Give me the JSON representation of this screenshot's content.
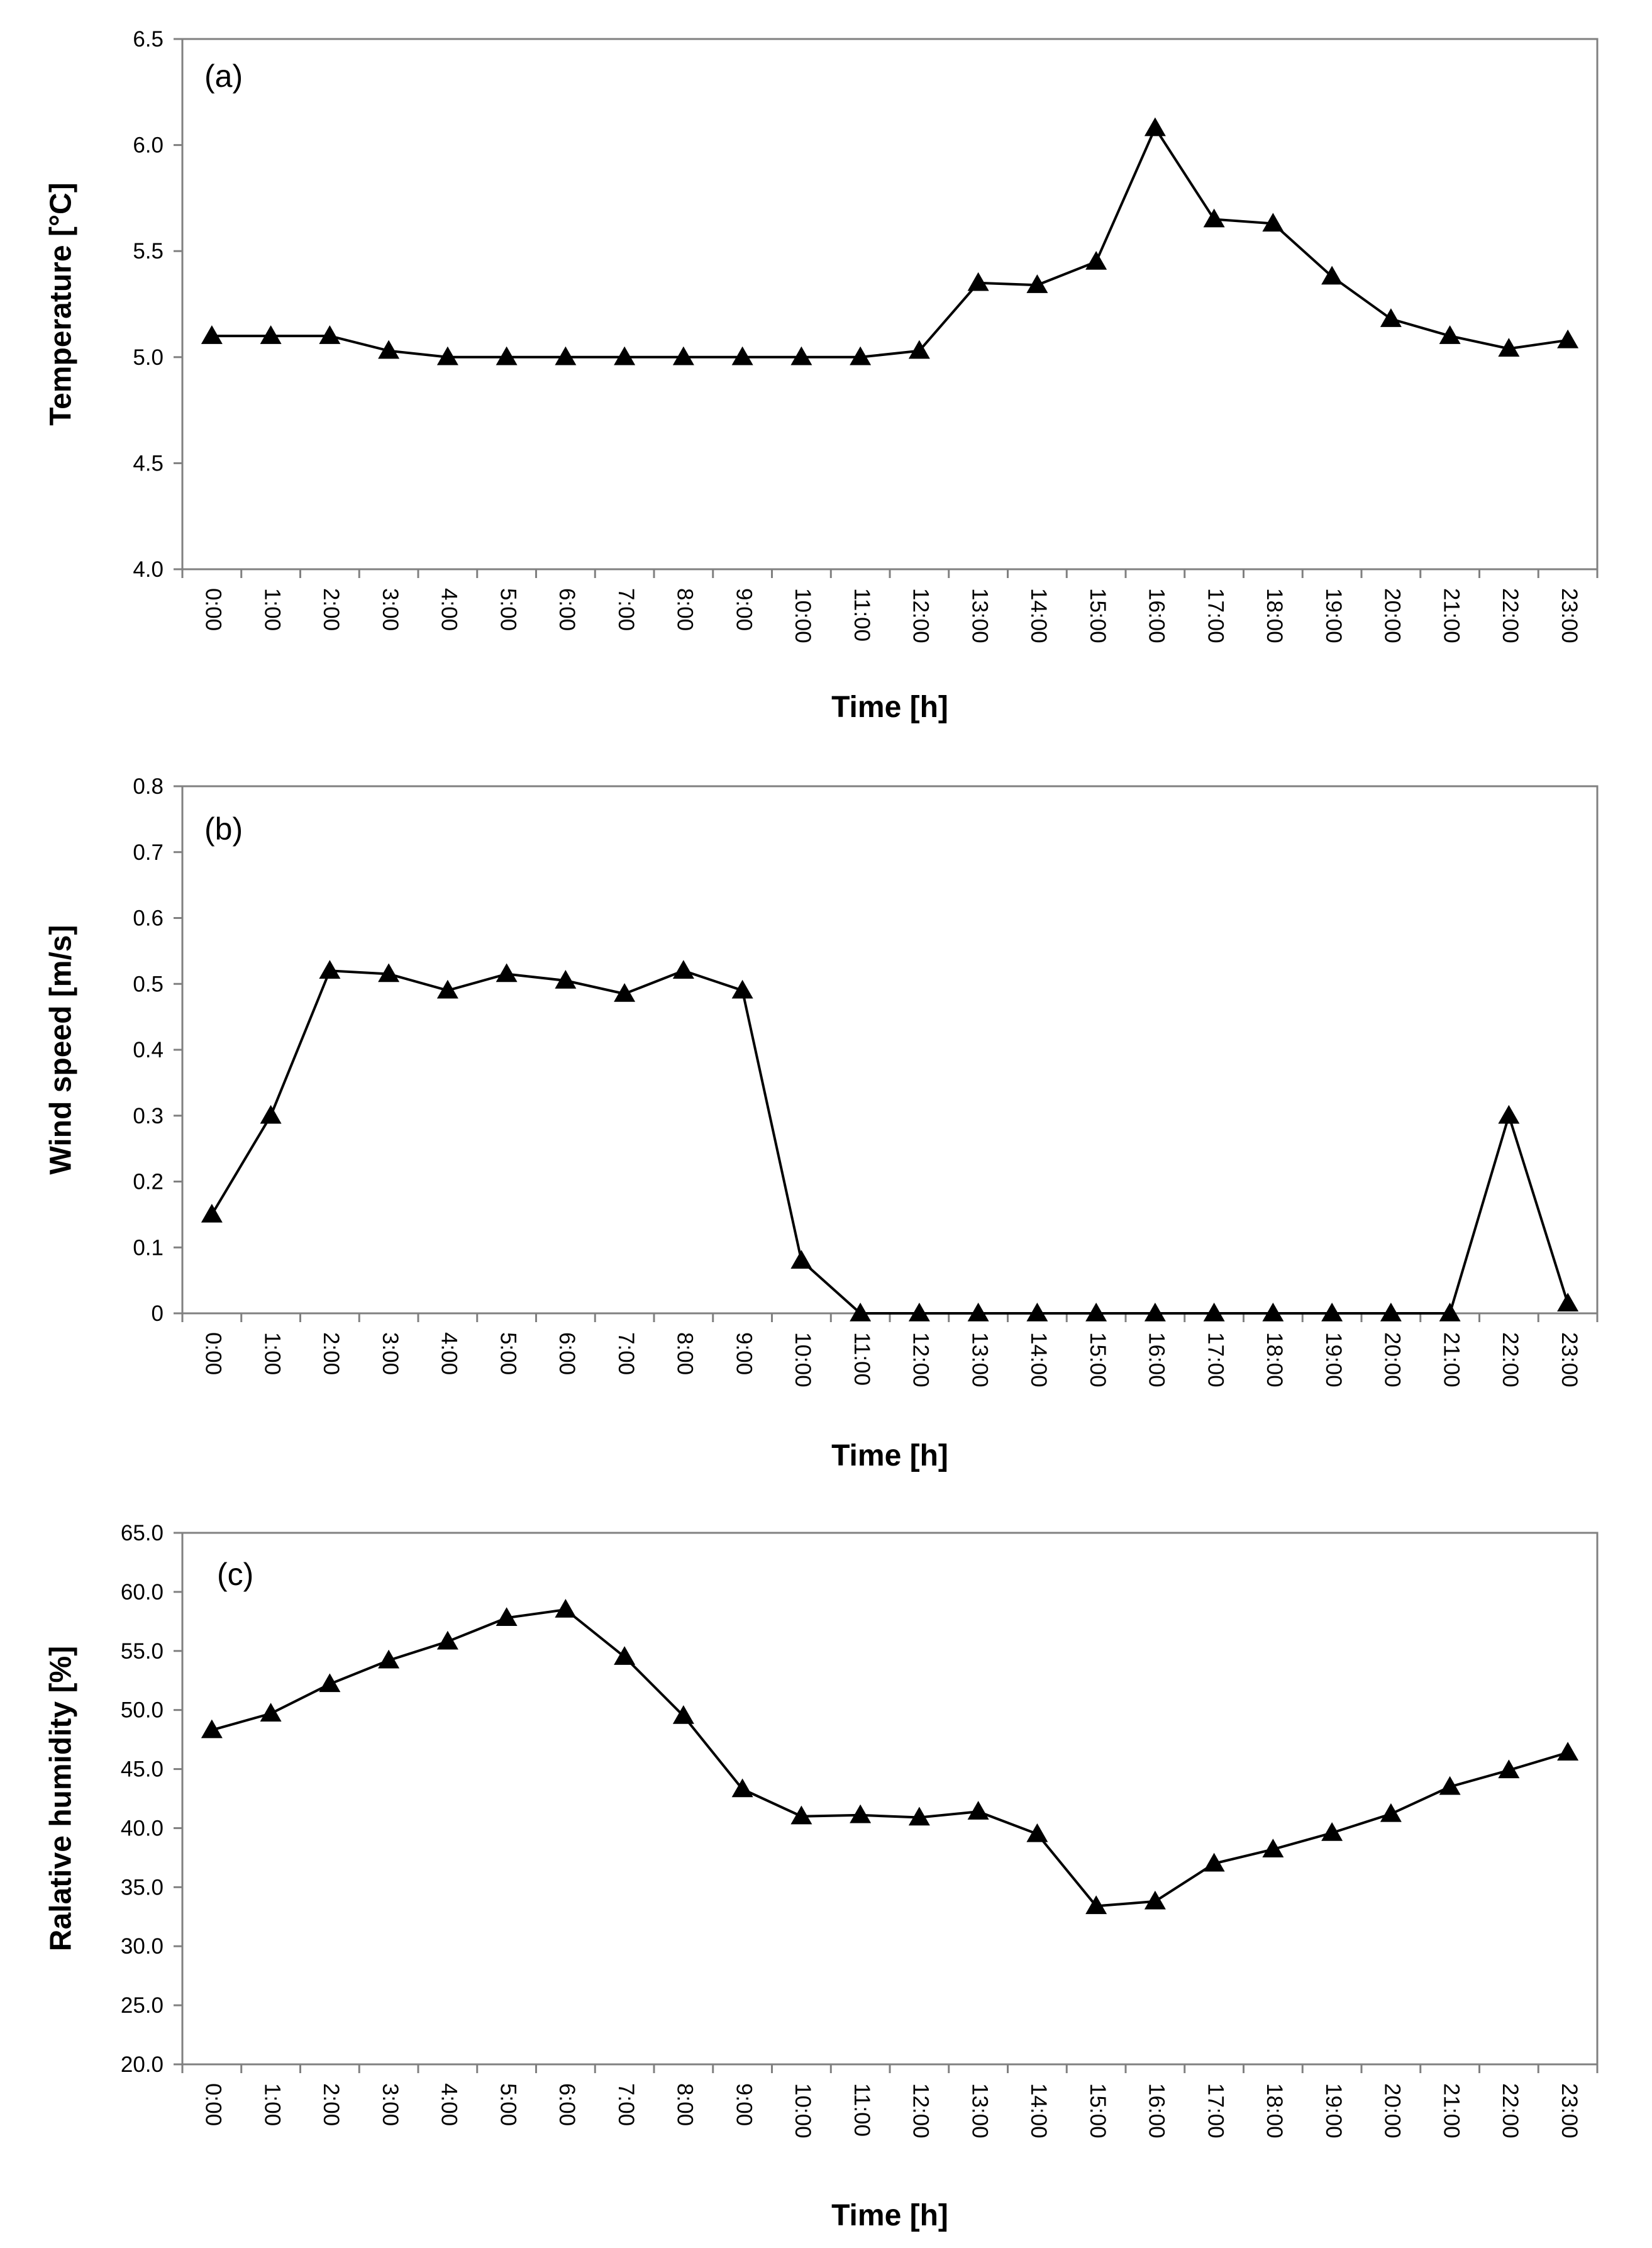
{
  "chart_data": [
    {
      "type": "line",
      "panel_label": "(a)",
      "xlabel": "Time [h]",
      "ylabel": "Temperature [°C]",
      "categories": [
        "0:00",
        "1:00",
        "2:00",
        "3:00",
        "4:00",
        "5:00",
        "6:00",
        "7:00",
        "8:00",
        "9:00",
        "10:00",
        "11:00",
        "12:00",
        "13:00",
        "14:00",
        "15:00",
        "16:00",
        "17:00",
        "18:00",
        "19:00",
        "20:00",
        "21:00",
        "22:00",
        "23:00"
      ],
      "yticks": [
        "4.0",
        "4.5",
        "5.0",
        "5.5",
        "6.0",
        "6.5"
      ],
      "ylim": [
        4.0,
        6.5
      ],
      "marker": "triangle",
      "color": "#000000",
      "values": [
        5.1,
        5.1,
        5.1,
        5.03,
        5.0,
        5.0,
        5.0,
        5.0,
        5.0,
        5.0,
        5.0,
        5.0,
        5.03,
        5.35,
        5.34,
        5.45,
        6.08,
        5.65,
        5.63,
        5.38,
        5.18,
        5.1,
        5.04,
        5.08
      ]
    },
    {
      "type": "line",
      "panel_label": "(b)",
      "xlabel": "Time [h]",
      "ylabel": "Wind speed [m/s]",
      "categories": [
        "0:00",
        "1:00",
        "2:00",
        "3:00",
        "4:00",
        "5:00",
        "6:00",
        "7:00",
        "8:00",
        "9:00",
        "10:00",
        "11:00",
        "12:00",
        "13:00",
        "14:00",
        "15:00",
        "16:00",
        "17:00",
        "18:00",
        "19:00",
        "20:00",
        "21:00",
        "22:00",
        "23:00"
      ],
      "yticks": [
        "0",
        "0.1",
        "0.2",
        "0.3",
        "0.4",
        "0.5",
        "0.6",
        "0.7",
        "0.8"
      ],
      "ylim": [
        0,
        0.8
      ],
      "marker": "triangle",
      "color": "#000000",
      "values": [
        0.15,
        0.3,
        0.52,
        0.515,
        0.49,
        0.515,
        0.505,
        0.485,
        0.52,
        0.49,
        0.08,
        0.0,
        0.0,
        0.0,
        0.0,
        0.0,
        0.0,
        0.0,
        0.0,
        0.0,
        0.0,
        0.0,
        0.3,
        0.015
      ]
    },
    {
      "type": "line",
      "panel_label": "(c)",
      "xlabel": "Time [h]",
      "ylabel": "Ralative humidity [%]",
      "categories": [
        "0:00",
        "1:00",
        "2:00",
        "3:00",
        "4:00",
        "5:00",
        "6:00",
        "7:00",
        "8:00",
        "9:00",
        "10:00",
        "11:00",
        "12:00",
        "13:00",
        "14:00",
        "15:00",
        "16:00",
        "17:00",
        "18:00",
        "19:00",
        "20:00",
        "21:00",
        "22:00",
        "23:00"
      ],
      "yticks": [
        "20.0",
        "25.0",
        "30.0",
        "35.0",
        "40.0",
        "45.0",
        "50.0",
        "55.0",
        "60.0",
        "65.0"
      ],
      "ylim": [
        20,
        65
      ],
      "marker": "triangle",
      "color": "#000000",
      "values": [
        48.3,
        49.7,
        52.2,
        54.2,
        55.8,
        57.8,
        58.5,
        54.5,
        49.5,
        43.3,
        41.0,
        41.1,
        40.9,
        41.4,
        39.5,
        33.4,
        33.8,
        37.0,
        38.2,
        39.6,
        41.2,
        43.5,
        44.9,
        46.4
      ]
    }
  ]
}
